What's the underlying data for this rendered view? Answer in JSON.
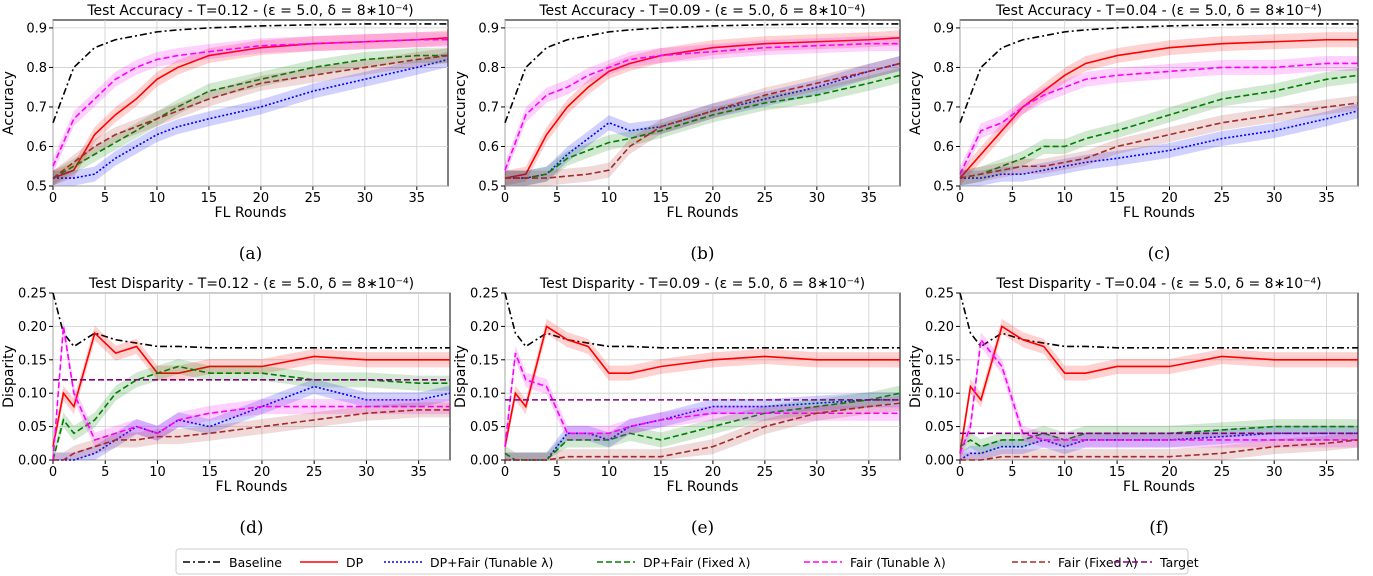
{
  "chart_data": [
    {
      "type": "line",
      "title": "Test Accuracy - T=0.12 - (ε = 5.0, δ = 8∗10⁻⁴)",
      "xlabel": "FL Rounds",
      "ylabel": "Accuracy",
      "xlim": [
        0,
        38
      ],
      "ylim": [
        0.5,
        0.92
      ],
      "xticks": [
        "0",
        "5",
        "10",
        "15",
        "20",
        "25",
        "30",
        "35"
      ],
      "yticks": [
        "0.5",
        "0.6",
        "0.7",
        "0.8",
        "0.9"
      ],
      "caption": "(a)",
      "x": [
        0,
        2,
        4,
        6,
        8,
        10,
        12,
        15,
        20,
        25,
        30,
        35,
        38
      ],
      "series": [
        {
          "name": "Baseline",
          "values": [
            0.66,
            0.8,
            0.85,
            0.87,
            0.88,
            0.89,
            0.895,
            0.9,
            0.905,
            0.908,
            0.91,
            0.91,
            0.91
          ]
        },
        {
          "name": "DP",
          "values": [
            0.52,
            0.54,
            0.63,
            0.68,
            0.72,
            0.77,
            0.8,
            0.83,
            0.85,
            0.86,
            0.865,
            0.87,
            0.875
          ]
        },
        {
          "name": "DP+Fair (Tunable λ)",
          "values": [
            0.52,
            0.52,
            0.53,
            0.57,
            0.6,
            0.63,
            0.65,
            0.67,
            0.7,
            0.74,
            0.77,
            0.8,
            0.82
          ]
        },
        {
          "name": "DP+Fair (Fixed λ)",
          "values": [
            0.52,
            0.55,
            0.58,
            0.61,
            0.64,
            0.67,
            0.7,
            0.74,
            0.77,
            0.8,
            0.82,
            0.83,
            0.83
          ]
        },
        {
          "name": "Fair (Tunable λ)",
          "values": [
            0.55,
            0.67,
            0.72,
            0.77,
            0.8,
            0.82,
            0.83,
            0.84,
            0.855,
            0.86,
            0.865,
            0.87,
            0.87
          ]
        },
        {
          "name": "Fair (Fixed λ)",
          "values": [
            0.52,
            0.56,
            0.6,
            0.63,
            0.65,
            0.67,
            0.69,
            0.72,
            0.76,
            0.78,
            0.8,
            0.82,
            0.83
          ]
        }
      ]
    },
    {
      "type": "line",
      "title": "Test Accuracy - T=0.09 - (ε = 5.0, δ = 8∗10⁻⁴)",
      "xlabel": "FL Rounds",
      "ylabel": "Accuracy",
      "xlim": [
        0,
        38
      ],
      "ylim": [
        0.5,
        0.92
      ],
      "xticks": [
        "0",
        "5",
        "10",
        "15",
        "20",
        "25",
        "30",
        "35"
      ],
      "yticks": [
        "0.5",
        "0.6",
        "0.7",
        "0.8",
        "0.9"
      ],
      "caption": "(b)",
      "x": [
        0,
        2,
        4,
        6,
        8,
        10,
        12,
        15,
        20,
        25,
        30,
        35,
        38
      ],
      "series": [
        {
          "name": "Baseline",
          "values": [
            0.66,
            0.8,
            0.85,
            0.87,
            0.88,
            0.89,
            0.895,
            0.9,
            0.905,
            0.908,
            0.91,
            0.91,
            0.91
          ]
        },
        {
          "name": "DP",
          "values": [
            0.52,
            0.53,
            0.63,
            0.7,
            0.75,
            0.79,
            0.81,
            0.83,
            0.85,
            0.86,
            0.865,
            0.87,
            0.875
          ]
        },
        {
          "name": "DP+Fair (Tunable λ)",
          "values": [
            0.52,
            0.52,
            0.53,
            0.58,
            0.62,
            0.66,
            0.64,
            0.65,
            0.69,
            0.72,
            0.75,
            0.79,
            0.81
          ]
        },
        {
          "name": "DP+Fair (Fixed λ)",
          "values": [
            0.52,
            0.52,
            0.53,
            0.57,
            0.59,
            0.61,
            0.62,
            0.64,
            0.68,
            0.71,
            0.73,
            0.76,
            0.78
          ]
        },
        {
          "name": "Fair (Tunable λ)",
          "values": [
            0.54,
            0.68,
            0.73,
            0.75,
            0.78,
            0.8,
            0.82,
            0.83,
            0.84,
            0.85,
            0.855,
            0.86,
            0.86
          ]
        },
        {
          "name": "Fair (Fixed λ)",
          "values": [
            0.52,
            0.52,
            0.52,
            0.525,
            0.53,
            0.54,
            0.6,
            0.65,
            0.69,
            0.73,
            0.76,
            0.79,
            0.81
          ]
        }
      ]
    },
    {
      "type": "line",
      "title": "Test Accuracy - T=0.04 - (ε = 5.0, δ = 8∗10⁻⁴)",
      "xlabel": "FL Rounds",
      "ylabel": "Accuracy",
      "xlim": [
        0,
        38
      ],
      "ylim": [
        0.5,
        0.92
      ],
      "xticks": [
        "0",
        "5",
        "10",
        "15",
        "20",
        "25",
        "30",
        "35"
      ],
      "yticks": [
        "0.5",
        "0.6",
        "0.7",
        "0.8",
        "0.9"
      ],
      "caption": "(c)",
      "x": [
        0,
        2,
        4,
        6,
        8,
        10,
        12,
        15,
        20,
        25,
        30,
        35,
        38
      ],
      "series": [
        {
          "name": "Baseline",
          "values": [
            0.66,
            0.8,
            0.85,
            0.87,
            0.88,
            0.89,
            0.895,
            0.9,
            0.905,
            0.908,
            0.91,
            0.91,
            0.91
          ]
        },
        {
          "name": "DP",
          "values": [
            0.52,
            0.58,
            0.64,
            0.7,
            0.74,
            0.78,
            0.81,
            0.83,
            0.85,
            0.86,
            0.865,
            0.87,
            0.87
          ]
        },
        {
          "name": "DP+Fair (Tunable λ)",
          "values": [
            0.52,
            0.52,
            0.53,
            0.53,
            0.54,
            0.55,
            0.56,
            0.57,
            0.59,
            0.62,
            0.64,
            0.67,
            0.69
          ]
        },
        {
          "name": "DP+Fair (Fixed λ)",
          "values": [
            0.52,
            0.53,
            0.55,
            0.57,
            0.6,
            0.6,
            0.62,
            0.64,
            0.68,
            0.72,
            0.74,
            0.77,
            0.78
          ]
        },
        {
          "name": "Fair (Tunable λ)",
          "values": [
            0.53,
            0.64,
            0.66,
            0.7,
            0.73,
            0.75,
            0.77,
            0.78,
            0.79,
            0.8,
            0.8,
            0.81,
            0.81
          ]
        },
        {
          "name": "Fair (Fixed λ)",
          "values": [
            0.52,
            0.53,
            0.54,
            0.55,
            0.55,
            0.56,
            0.57,
            0.6,
            0.63,
            0.66,
            0.68,
            0.7,
            0.71
          ]
        }
      ]
    },
    {
      "type": "line",
      "title": "Test Disparity - T=0.12 - (ε = 5.0, δ = 8∗10⁻⁴)",
      "xlabel": "FL Rounds",
      "ylabel": "Disparity",
      "xlim": [
        0,
        38
      ],
      "ylim": [
        0,
        0.25
      ],
      "xticks": [
        "0",
        "5",
        "10",
        "15",
        "20",
        "25",
        "30",
        "35"
      ],
      "yticks": [
        "0.00",
        "0.05",
        "0.10",
        "0.15",
        "0.20",
        "0.25"
      ],
      "caption": "(d)",
      "x": [
        0,
        1,
        2,
        4,
        6,
        8,
        10,
        12,
        15,
        20,
        25,
        30,
        35,
        38
      ],
      "series": [
        {
          "name": "Baseline",
          "values": [
            0.25,
            0.19,
            0.17,
            0.19,
            0.18,
            0.175,
            0.17,
            0.17,
            0.168,
            0.168,
            0.168,
            0.168,
            0.168,
            0.168
          ]
        },
        {
          "name": "DP",
          "values": [
            0.02,
            0.1,
            0.08,
            0.19,
            0.16,
            0.17,
            0.13,
            0.13,
            0.14,
            0.14,
            0.155,
            0.15,
            0.15,
            0.15
          ]
        },
        {
          "name": "DP+Fair (Tunable λ)",
          "values": [
            0.0,
            0.0,
            0.0,
            0.01,
            0.03,
            0.05,
            0.04,
            0.06,
            0.05,
            0.08,
            0.11,
            0.09,
            0.09,
            0.1
          ]
        },
        {
          "name": "DP+Fair (Fixed λ)",
          "values": [
            0.0,
            0.06,
            0.04,
            0.06,
            0.1,
            0.12,
            0.13,
            0.14,
            0.13,
            0.13,
            0.12,
            0.12,
            0.115,
            0.115
          ]
        },
        {
          "name": "Fair (Tunable λ)",
          "values": [
            0.0,
            0.2,
            0.1,
            0.03,
            0.04,
            0.05,
            0.04,
            0.06,
            0.07,
            0.08,
            0.08,
            0.08,
            0.08,
            0.08
          ]
        },
        {
          "name": "Fair (Fixed λ)",
          "values": [
            0.0,
            0.0,
            0.01,
            0.02,
            0.03,
            0.03,
            0.035,
            0.035,
            0.04,
            0.05,
            0.06,
            0.07,
            0.075,
            0.075
          ]
        },
        {
          "name": "Target",
          "values": [
            0.12,
            0.12,
            0.12,
            0.12,
            0.12,
            0.12,
            0.12,
            0.12,
            0.12,
            0.12,
            0.12,
            0.12,
            0.12,
            0.12
          ]
        }
      ]
    },
    {
      "type": "line",
      "title": "Test Disparity - T=0.09 - (ε = 5.0, δ = 8∗10⁻⁴)",
      "xlabel": "FL Rounds",
      "ylabel": "Disparity",
      "xlim": [
        0,
        38
      ],
      "ylim": [
        0,
        0.25
      ],
      "xticks": [
        "0",
        "5",
        "10",
        "15",
        "20",
        "25",
        "30",
        "35"
      ],
      "yticks": [
        "0.00",
        "0.05",
        "0.10",
        "0.15",
        "0.20",
        "0.25"
      ],
      "caption": "(e)",
      "x": [
        0,
        1,
        2,
        4,
        6,
        8,
        10,
        12,
        15,
        20,
        25,
        30,
        35,
        38
      ],
      "series": [
        {
          "name": "Baseline",
          "values": [
            0.25,
            0.19,
            0.17,
            0.19,
            0.18,
            0.175,
            0.17,
            0.17,
            0.168,
            0.168,
            0.168,
            0.168,
            0.168,
            0.168
          ]
        },
        {
          "name": "DP",
          "values": [
            0.02,
            0.1,
            0.08,
            0.2,
            0.18,
            0.17,
            0.13,
            0.13,
            0.14,
            0.15,
            0.155,
            0.15,
            0.15,
            0.15
          ]
        },
        {
          "name": "DP+Fair (Tunable λ)",
          "values": [
            0.0,
            0.0,
            0.0,
            0.0,
            0.04,
            0.04,
            0.03,
            0.05,
            0.06,
            0.08,
            0.08,
            0.085,
            0.09,
            0.09
          ]
        },
        {
          "name": "DP+Fair (Fixed λ)",
          "values": [
            0.01,
            0.0,
            0.0,
            0.0,
            0.03,
            0.03,
            0.03,
            0.04,
            0.03,
            0.05,
            0.07,
            0.08,
            0.09,
            0.1
          ]
        },
        {
          "name": "Fair (Tunable λ)",
          "values": [
            0.02,
            0.16,
            0.12,
            0.11,
            0.04,
            0.04,
            0.04,
            0.05,
            0.06,
            0.07,
            0.07,
            0.07,
            0.07,
            0.07
          ]
        },
        {
          "name": "Fair (Fixed λ)",
          "values": [
            0.0,
            0.0,
            0.0,
            0.0,
            0.005,
            0.005,
            0.005,
            0.005,
            0.005,
            0.02,
            0.05,
            0.07,
            0.08,
            0.085
          ]
        },
        {
          "name": "Target",
          "values": [
            0.09,
            0.09,
            0.09,
            0.09,
            0.09,
            0.09,
            0.09,
            0.09,
            0.09,
            0.09,
            0.09,
            0.09,
            0.09,
            0.09
          ]
        }
      ]
    },
    {
      "type": "line",
      "title": "Test Disparity - T=0.04 - (ε = 5.0, δ = 8∗10⁻⁴)",
      "xlabel": "FL Rounds",
      "ylabel": "Disparity",
      "xlim": [
        0,
        38
      ],
      "ylim": [
        0,
        0.25
      ],
      "xticks": [
        "0",
        "5",
        "10",
        "15",
        "20",
        "25",
        "30",
        "35"
      ],
      "yticks": [
        "0.00",
        "0.05",
        "0.10",
        "0.15",
        "0.20",
        "0.25"
      ],
      "caption": "(f)",
      "x": [
        0,
        1,
        2,
        4,
        6,
        8,
        10,
        12,
        15,
        20,
        25,
        30,
        35,
        38
      ],
      "series": [
        {
          "name": "Baseline",
          "values": [
            0.25,
            0.19,
            0.17,
            0.19,
            0.18,
            0.175,
            0.17,
            0.17,
            0.168,
            0.168,
            0.168,
            0.168,
            0.168,
            0.168
          ]
        },
        {
          "name": "DP",
          "values": [
            0.01,
            0.11,
            0.09,
            0.2,
            0.18,
            0.17,
            0.13,
            0.13,
            0.14,
            0.14,
            0.155,
            0.15,
            0.15,
            0.15
          ]
        },
        {
          "name": "DP+Fair (Tunable λ)",
          "values": [
            0.0,
            0.01,
            0.01,
            0.02,
            0.02,
            0.03,
            0.02,
            0.03,
            0.03,
            0.03,
            0.035,
            0.04,
            0.04,
            0.04
          ]
        },
        {
          "name": "DP+Fair (Fixed λ)",
          "values": [
            0.02,
            0.03,
            0.02,
            0.03,
            0.03,
            0.04,
            0.03,
            0.04,
            0.04,
            0.04,
            0.045,
            0.05,
            0.05,
            0.05
          ]
        },
        {
          "name": "Fair (Tunable λ)",
          "values": [
            0.01,
            0.05,
            0.18,
            0.14,
            0.04,
            0.03,
            0.03,
            0.03,
            0.03,
            0.03,
            0.03,
            0.03,
            0.03,
            0.03
          ]
        },
        {
          "name": "Fair (Fixed λ)",
          "values": [
            0.0,
            0.0,
            0.0,
            0.005,
            0.005,
            0.005,
            0.005,
            0.005,
            0.005,
            0.005,
            0.01,
            0.02,
            0.025,
            0.03
          ]
        },
        {
          "name": "Target",
          "values": [
            0.04,
            0.04,
            0.04,
            0.04,
            0.04,
            0.04,
            0.04,
            0.04,
            0.04,
            0.04,
            0.04,
            0.04,
            0.04,
            0.04
          ]
        }
      ]
    }
  ],
  "legend": {
    "placement": "bottom",
    "entries": [
      {
        "label": "Baseline",
        "color": "#000000",
        "dash": "dashdot"
      },
      {
        "label": "DP",
        "color": "#ff0000",
        "dash": "solid"
      },
      {
        "label": "DP+Fair (Tunable λ)",
        "color": "#0000ff",
        "dash": "dotted"
      },
      {
        "label": "DP+Fair (Fixed λ)",
        "color": "#008000",
        "dash": "dashed"
      },
      {
        "label": "Fair (Tunable λ)",
        "color": "#ff00ff",
        "dash": "dashed"
      },
      {
        "label": "Fair (Fixed λ)",
        "color": "#a52a2a",
        "dash": "dashed"
      },
      {
        "label": "Target",
        "color": "#800080",
        "dash": "dashed"
      }
    ]
  }
}
